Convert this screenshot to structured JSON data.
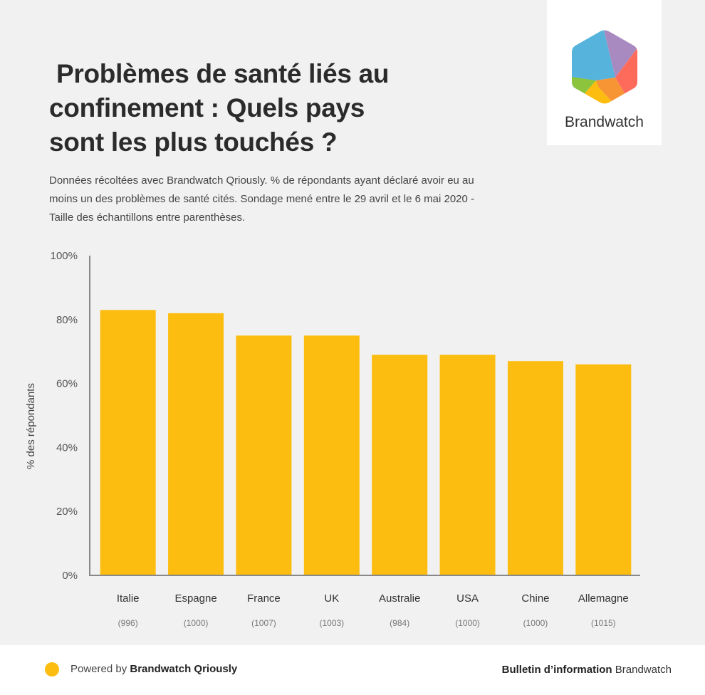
{
  "header": {
    "title": " Problèmes de santé liés au\nconfinement : Quels pays\nsont les plus touchés ?",
    "subtitle": "Données récoltées avec Brandwatch Qriously. % de répondants ayant déclaré avoir eu au moins un des problèmes de santé cités. Sondage mené entre le 29 avril et le 6 mai 2020 - Taille des échantillons entre parenthèses."
  },
  "logo": {
    "icon": "brandwatch-hexagon-logo-icon",
    "name": "Brandwatch",
    "colors": [
      "#56b4dc",
      "#a98ac0",
      "#ff6b5b",
      "#f79433",
      "#fdbd10",
      "#8cc43e"
    ]
  },
  "chart_data": {
    "type": "bar",
    "title": "Problèmes de santé liés au confinement : Quels pays sont les plus touchés ?",
    "xlabel": "",
    "ylabel": "% des répondants",
    "ylim": [
      0,
      100
    ],
    "yticks": [
      0,
      20,
      40,
      60,
      80,
      100
    ],
    "ytick_labels": [
      "0%",
      "20%",
      "40%",
      "60%",
      "80%",
      "100%"
    ],
    "categories": [
      "Italie",
      "Espagne",
      "France",
      "UK",
      "Australie",
      "USA",
      "Chine",
      "Allemagne"
    ],
    "sample_sizes": [
      "(996)",
      "(1000)",
      "(1007)",
      "(1003)",
      "(984)",
      "(1000)",
      "(1000)",
      "(1015)"
    ],
    "values": [
      83,
      82,
      75,
      75,
      69,
      69,
      67,
      66
    ],
    "unit": "%",
    "bar_color": "#fdbd10",
    "grid": false,
    "legend": "none"
  },
  "footer": {
    "powered_prefix": "Powered by ",
    "powered_brand": "Brandwatch Qriously",
    "bulletin_bold": "Bulletin d’information",
    "bulletin_brand": " Brandwatch",
    "dot_color": "#fdbd10"
  }
}
